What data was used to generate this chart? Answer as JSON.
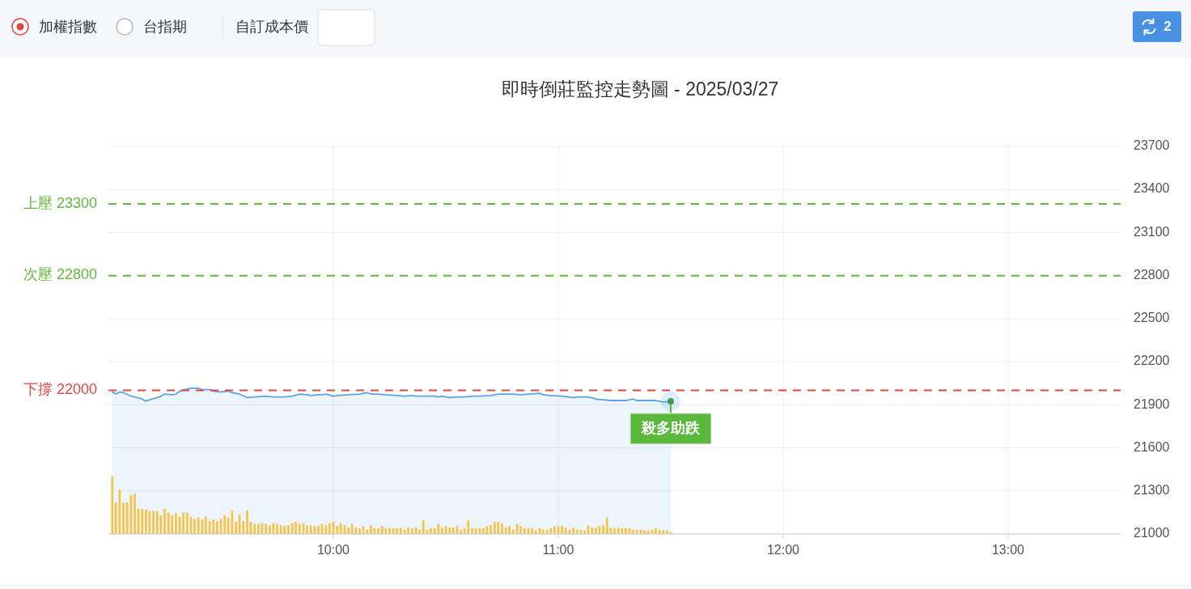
{
  "chart_data": {
    "type": "area",
    "title": "即時倒莊監控走勢圖 - 2025/03/27",
    "annotations": [
      "加權指數",
      "台指期",
      "自訂成本價",
      "2",
      {
        "text": "殺多助跌",
        "x": 11.5,
        "y": 21925
      }
    ],
    "series": [
      {
        "color": "#5ca3e6",
        "x": [
          9.017,
          9.033,
          9.05,
          9.067,
          9.1,
          9.117,
          9.15,
          9.167,
          9.183,
          9.217,
          9.233,
          9.25,
          9.283,
          9.3,
          9.317,
          9.35,
          9.367,
          9.4,
          9.417,
          9.45,
          9.467,
          9.5,
          9.533,
          9.55,
          9.583,
          9.617,
          9.65,
          9.7,
          9.733,
          9.783,
          9.817,
          9.85,
          9.883,
          9.9,
          9.933,
          9.95,
          9.967,
          10,
          10.017,
          10.067,
          10.117,
          10.15,
          10.167,
          10.2,
          10.233,
          10.283,
          10.317,
          10.35,
          10.367,
          10.4,
          10.433,
          10.45,
          10.467,
          10.483,
          10.517,
          10.55,
          10.583,
          10.617,
          10.65,
          10.7,
          10.733,
          10.767,
          10.8,
          10.833,
          10.867,
          10.917,
          10.933,
          10.967,
          11.017,
          11.067,
          11.083,
          11.133,
          11.167,
          11.2,
          11.233,
          11.267,
          11.3,
          11.333,
          11.35,
          11.4,
          11.433,
          11.467,
          11.5
        ],
        "values": [
          21990,
          21975,
          21990,
          21985,
          21960,
          21955,
          21940,
          21925,
          21935,
          21950,
          21960,
          21975,
          21970,
          21975,
          21995,
          22010,
          22015,
          22015,
          22005,
          22005,
          21995,
          21990,
          21995,
          21985,
          21975,
          21950,
          21955,
          21960,
          21955,
          21955,
          21960,
          21975,
          21970,
          21965,
          21970,
          21970,
          21975,
          21960,
          21965,
          21970,
          21975,
          21985,
          21975,
          21975,
          21970,
          21965,
          21960,
          21965,
          21960,
          21960,
          21960,
          21960,
          21955,
          21960,
          21950,
          21955,
          21955,
          21960,
          21960,
          21965,
          21975,
          21975,
          21975,
          21970,
          21975,
          21980,
          21970,
          21965,
          21960,
          21950,
          21955,
          21955,
          21940,
          21935,
          21930,
          21930,
          21930,
          21940,
          21930,
          21930,
          21930,
          21920,
          21925
        ]
      },
      {
        "type": "bar",
        "color": "#f6c244",
        "x": [
          9.017,
          9.033,
          9.05,
          9.067,
          9.083,
          9.1,
          9.117,
          9.133,
          9.15,
          9.167,
          9.183,
          9.2,
          9.217,
          9.233,
          9.25,
          9.267,
          9.283,
          9.3,
          9.317,
          9.333,
          9.35,
          9.367,
          9.383,
          9.4,
          9.417,
          9.433,
          9.45,
          9.467,
          9.483,
          9.5,
          9.517,
          9.533,
          9.55,
          9.567,
          9.583,
          9.6,
          9.617,
          9.633,
          9.65,
          9.667,
          9.683,
          9.7,
          9.717,
          9.733,
          9.75,
          9.767,
          9.783,
          9.8,
          9.817,
          9.833,
          9.85,
          9.867,
          9.883,
          9.9,
          9.917,
          9.933,
          9.95,
          9.967,
          9.983,
          10,
          10.017,
          10.033,
          10.05,
          10.067,
          10.083,
          10.1,
          10.117,
          10.133,
          10.15,
          10.167,
          10.183,
          10.2,
          10.217,
          10.233,
          10.25,
          10.267,
          10.283,
          10.3,
          10.317,
          10.333,
          10.35,
          10.367,
          10.383,
          10.4,
          10.417,
          10.433,
          10.45,
          10.467,
          10.483,
          10.5,
          10.517,
          10.533,
          10.55,
          10.567,
          10.583,
          10.6,
          10.617,
          10.633,
          10.65,
          10.667,
          10.683,
          10.7,
          10.717,
          10.733,
          10.75,
          10.767,
          10.783,
          10.8,
          10.817,
          10.833,
          10.85,
          10.867,
          10.883,
          10.9,
          10.917,
          10.933,
          10.95,
          10.967,
          10.983,
          11,
          11.017,
          11.033,
          11.05,
          11.067,
          11.083,
          11.1,
          11.117,
          11.133,
          11.15,
          11.167,
          11.183,
          11.2,
          11.217,
          11.233,
          11.25,
          11.267,
          11.283,
          11.3,
          11.317,
          11.333,
          11.35,
          11.367,
          11.383,
          11.4,
          11.417,
          11.433,
          11.45,
          11.467,
          11.483,
          11.5
        ],
        "values": [
          21400,
          21220,
          21310,
          21220,
          21220,
          21270,
          21280,
          21175,
          21175,
          21170,
          21160,
          21160,
          21160,
          21130,
          21175,
          21150,
          21130,
          21145,
          21120,
          21150,
          21150,
          21120,
          21105,
          21115,
          21100,
          21120,
          21090,
          21100,
          21090,
          21105,
          21130,
          21115,
          21165,
          21085,
          21135,
          21090,
          21165,
          21085,
          21070,
          21070,
          21075,
          21070,
          21060,
          21075,
          21070,
          21060,
          21055,
          21060,
          21075,
          21085,
          21070,
          21075,
          21060,
          21060,
          21055,
          21055,
          21070,
          21060,
          21075,
          21085,
          21055,
          21075,
          21060,
          21045,
          21070,
          21045,
          21040,
          21055,
          21030,
          21060,
          21040,
          21040,
          21055,
          21040,
          21040,
          21040,
          21040,
          21045,
          21030,
          21045,
          21040,
          21045,
          21030,
          21095,
          21030,
          21040,
          21040,
          21070,
          21045,
          21055,
          21045,
          21045,
          21055,
          21030,
          21040,
          21095,
          21040,
          21040,
          21040,
          21040,
          21055,
          21060,
          21085,
          21085,
          21075,
          21045,
          21055,
          21030,
          21070,
          21055,
          21040,
          21040,
          21040,
          21025,
          21040,
          21030,
          21030,
          21040,
          21055,
          21055,
          21055,
          21045,
          21030,
          21045,
          21030,
          21030,
          21025,
          21060,
          21045,
          21045,
          21055,
          21060,
          21115,
          21045,
          21040,
          21045,
          21040,
          21040,
          21040,
          21030,
          21030,
          21030,
          21025,
          21025,
          21030,
          21040,
          21030,
          21025,
          21025,
          21015
        ]
      }
    ],
    "xlim": [
      9,
      13.5
    ],
    "xticks": [
      {
        "value": 10,
        "label": "10:00"
      },
      {
        "value": 11,
        "label": "11:00"
      },
      {
        "value": 12,
        "label": "12:00"
      },
      {
        "value": 13,
        "label": "13:00"
      }
    ],
    "ylim": [
      21000,
      23700
    ],
    "yticks": [
      21000,
      21300,
      21600,
      21900,
      22200,
      22500,
      22800,
      23100,
      23400,
      23700
    ],
    "ref_lines": [
      {
        "axis": "y",
        "value": 23300,
        "label": "上壓 23300",
        "color": "#62b83b",
        "line_style": "dashed"
      },
      {
        "axis": "y",
        "value": 22800,
        "label": "次壓 22800",
        "color": "#62b83b",
        "line_style": "dashed"
      },
      {
        "axis": "y",
        "value": 22000,
        "label": "下撐 22000",
        "color": "#e0473f",
        "line_style": "dashed"
      }
    ],
    "grid": true
  }
}
